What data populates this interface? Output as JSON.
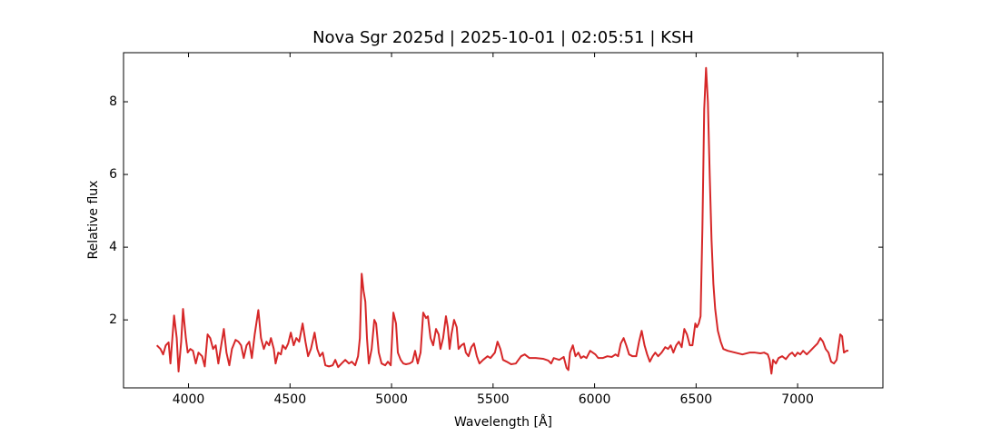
{
  "chart_data": {
    "type": "line",
    "title": "Nova Sgr 2025d | 2025-10-01 | 02:05:51 | KSH",
    "x_label": "Wavelength [Å]",
    "y_label": "Relative flux",
    "color": "#d62728",
    "xlim": [
      3680,
      7420
    ],
    "ylim": [
      0.13,
      9.35
    ],
    "xticks": [
      4000,
      4500,
      5000,
      5500,
      6000,
      6500,
      7000
    ],
    "yticks": [
      2,
      4,
      6,
      8
    ],
    "tick_direction": "in",
    "mirror_ticks": true,
    "grid": false,
    "x": [
      3844,
      3862,
      3875,
      3888,
      3902,
      3911,
      3929,
      3942,
      3951,
      3964,
      3973,
      3987,
      3996,
      4009,
      4022,
      4036,
      4049,
      4067,
      4080,
      4094,
      4107,
      4121,
      4134,
      4147,
      4161,
      4174,
      4187,
      4201,
      4214,
      4232,
      4246,
      4259,
      4272,
      4286,
      4299,
      4312,
      4326,
      4344,
      4357,
      4371,
      4384,
      4397,
      4406,
      4420,
      4429,
      4442,
      4455,
      4464,
      4478,
      4491,
      4504,
      4518,
      4531,
      4545,
      4562,
      4576,
      4589,
      4603,
      4621,
      4634,
      4647,
      4661,
      4674,
      4692,
      4710,
      4723,
      4737,
      4754,
      4772,
      4790,
      4804,
      4821,
      4835,
      4844,
      4853,
      4862,
      4871,
      4879,
      4888,
      4902,
      4915,
      4924,
      4937,
      4951,
      4969,
      4982,
      4996,
      5009,
      5022,
      5031,
      5045,
      5058,
      5071,
      5089,
      5103,
      5116,
      5129,
      5143,
      5156,
      5170,
      5179,
      5192,
      5205,
      5219,
      5232,
      5241,
      5254,
      5268,
      5277,
      5286,
      5295,
      5308,
      5321,
      5330,
      5344,
      5357,
      5366,
      5379,
      5393,
      5406,
      5420,
      5433,
      5451,
      5473,
      5487,
      5509,
      5522,
      5536,
      5549,
      5567,
      5589,
      5612,
      5638,
      5656,
      5679,
      5710,
      5746,
      5772,
      5786,
      5799,
      5826,
      5848,
      5862,
      5871,
      5879,
      5893,
      5906,
      5920,
      5933,
      5946,
      5960,
      5978,
      5991,
      6004,
      6018,
      6040,
      6063,
      6085,
      6103,
      6116,
      6129,
      6143,
      6156,
      6170,
      6187,
      6205,
      6219,
      6232,
      6246,
      6259,
      6272,
      6286,
      6299,
      6313,
      6330,
      6348,
      6362,
      6375,
      6388,
      6402,
      6415,
      6429,
      6442,
      6455,
      6469,
      6482,
      6496,
      6504,
      6513,
      6522,
      6531,
      6540,
      6549,
      6558,
      6567,
      6576,
      6585,
      6594,
      6607,
      6621,
      6634,
      6656,
      6692,
      6728,
      6763,
      6790,
      6817,
      6835,
      6853,
      6862,
      6871,
      6879,
      6893,
      6906,
      6924,
      6942,
      6960,
      6973,
      6987,
      7000,
      7013,
      7027,
      7045,
      7063,
      7080,
      7098,
      7112,
      7125,
      7138,
      7152,
      7165,
      7179,
      7192,
      7210,
      7219,
      7228,
      7241,
      7250
    ],
    "values": [
      1.3,
      1.2,
      1.05,
      1.3,
      1.38,
      0.8,
      2.12,
      1.5,
      0.58,
      1.4,
      2.3,
      1.5,
      1.1,
      1.2,
      1.15,
      0.8,
      1.1,
      1.0,
      0.72,
      1.6,
      1.5,
      1.2,
      1.3,
      0.8,
      1.3,
      1.75,
      1.1,
      0.75,
      1.2,
      1.45,
      1.4,
      1.3,
      0.95,
      1.3,
      1.4,
      0.95,
      1.6,
      2.27,
      1.5,
      1.2,
      1.4,
      1.3,
      1.5,
      1.2,
      0.8,
      1.1,
      1.05,
      1.3,
      1.2,
      1.35,
      1.65,
      1.3,
      1.5,
      1.4,
      1.9,
      1.4,
      1.0,
      1.2,
      1.65,
      1.2,
      1.0,
      1.1,
      0.75,
      0.72,
      0.75,
      0.9,
      0.7,
      0.8,
      0.9,
      0.8,
      0.85,
      0.75,
      1.0,
      1.5,
      3.27,
      2.8,
      2.5,
      1.5,
      0.8,
      1.2,
      2.0,
      1.9,
      1.1,
      0.8,
      0.75,
      0.85,
      0.75,
      2.2,
      1.9,
      1.1,
      0.9,
      0.8,
      0.78,
      0.8,
      0.85,
      1.15,
      0.8,
      1.1,
      2.2,
      2.05,
      2.1,
      1.5,
      1.3,
      1.75,
      1.6,
      1.2,
      1.5,
      2.1,
      1.8,
      1.2,
      1.6,
      2.0,
      1.8,
      1.2,
      1.3,
      1.35,
      1.1,
      1.0,
      1.25,
      1.35,
      1.0,
      0.8,
      0.9,
      1.0,
      0.95,
      1.1,
      1.4,
      1.2,
      0.9,
      0.85,
      0.78,
      0.8,
      1.0,
      1.05,
      0.95,
      0.95,
      0.93,
      0.88,
      0.8,
      0.95,
      0.9,
      0.98,
      0.68,
      0.62,
      1.1,
      1.3,
      1.0,
      1.1,
      0.95,
      1.0,
      0.95,
      1.15,
      1.1,
      1.05,
      0.95,
      0.95,
      1.0,
      0.98,
      1.05,
      1.0,
      1.35,
      1.5,
      1.3,
      1.05,
      1.0,
      1.0,
      1.4,
      1.7,
      1.3,
      1.05,
      0.85,
      1.0,
      1.1,
      1.0,
      1.1,
      1.25,
      1.2,
      1.3,
      1.1,
      1.3,
      1.4,
      1.25,
      1.75,
      1.6,
      1.3,
      1.3,
      1.9,
      1.8,
      1.9,
      2.1,
      4.5,
      7.8,
      8.93,
      8.0,
      6.0,
      4.2,
      3.0,
      2.3,
      1.7,
      1.4,
      1.2,
      1.15,
      1.1,
      1.05,
      1.1,
      1.1,
      1.08,
      1.1,
      1.05,
      0.9,
      0.52,
      0.9,
      0.8,
      0.95,
      1.0,
      0.92,
      1.05,
      1.1,
      1.0,
      1.1,
      1.05,
      1.15,
      1.05,
      1.15,
      1.25,
      1.35,
      1.5,
      1.4,
      1.2,
      1.1,
      0.85,
      0.8,
      0.9,
      1.6,
      1.55,
      1.1,
      1.15,
      1.15
    ]
  }
}
